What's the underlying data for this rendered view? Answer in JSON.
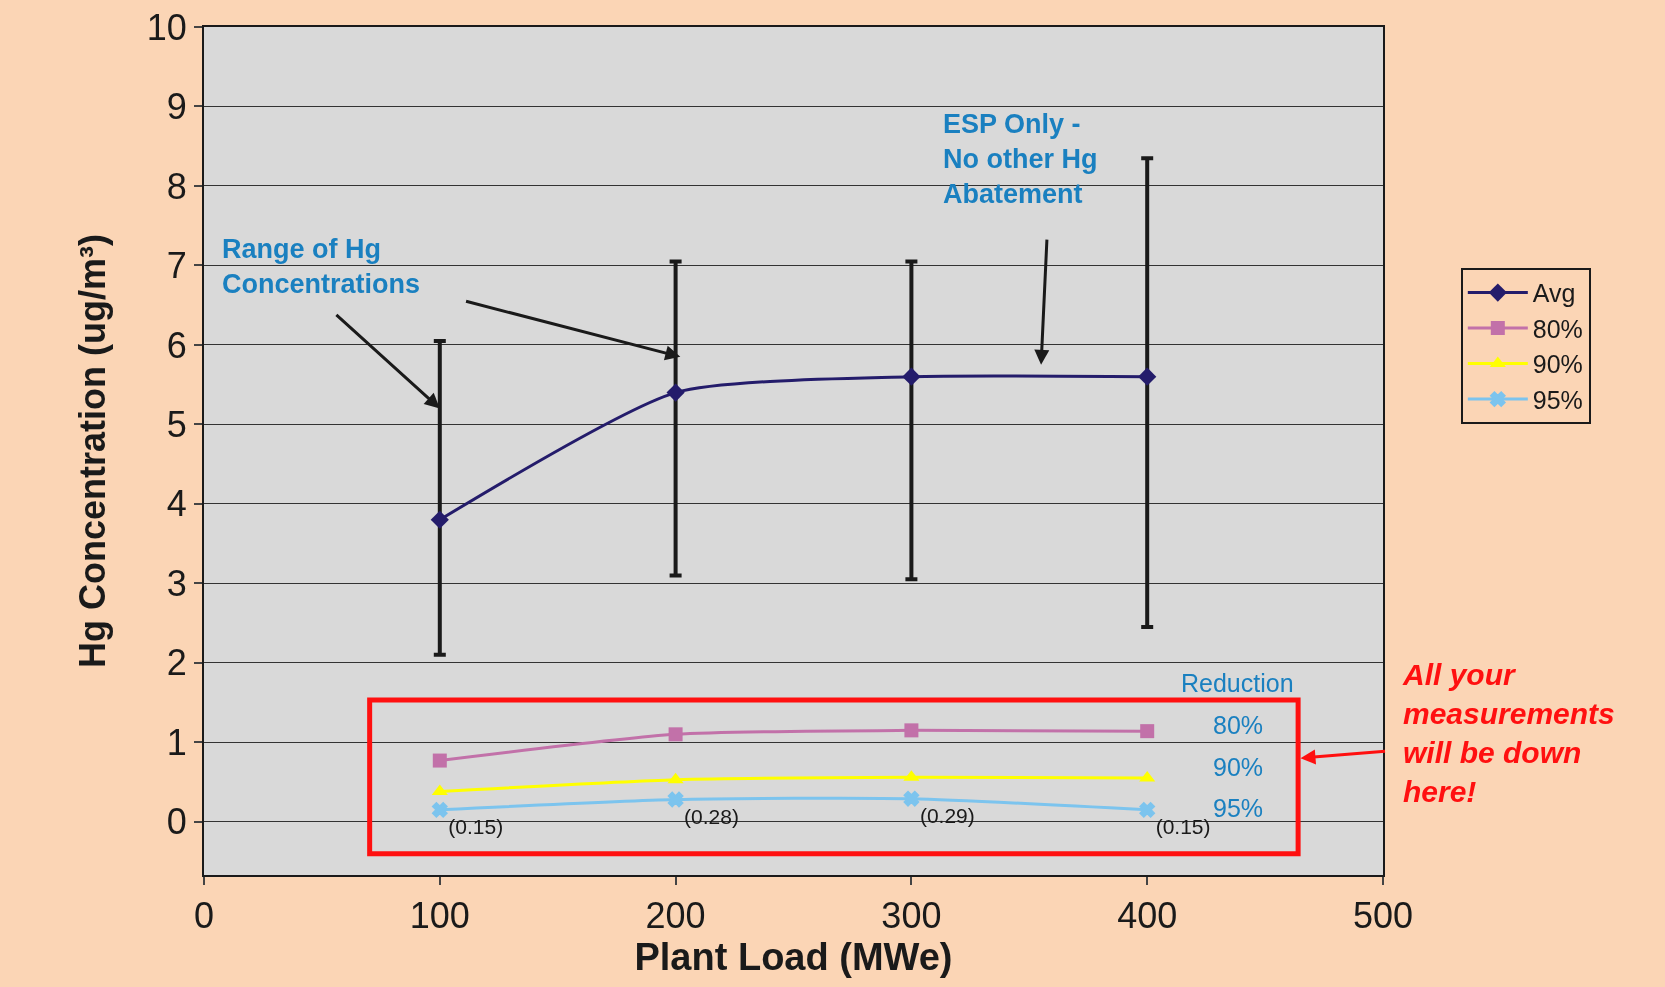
{
  "chart_data": {
    "type": "line",
    "xlabel": "Plant Load (MWe)",
    "ylabel": "Hg Concentration (ug/m³)",
    "x": [
      100,
      200,
      300,
      400
    ],
    "series": [
      {
        "name": "Avg",
        "color": "#241c6b",
        "marker": "diamond",
        "values": [
          3.8,
          5.4,
          5.6,
          5.6
        ],
        "errors": [
          [
            2.1,
            6.05
          ],
          [
            3.1,
            7.05
          ],
          [
            3.05,
            7.05
          ],
          [
            2.45,
            8.35
          ]
        ]
      },
      {
        "name": "80%",
        "color": "#c271a9",
        "marker": "square",
        "values": [
          0.77,
          1.1,
          1.15,
          1.14
        ]
      },
      {
        "name": "90%",
        "color": "#ffff00",
        "marker": "triangle",
        "values": [
          0.38,
          0.53,
          0.56,
          0.55
        ]
      },
      {
        "name": "95%",
        "color": "#7cc4ee",
        "marker": "cross",
        "values": [
          0.15,
          0.28,
          0.29,
          0.15
        ],
        "value_labels": [
          "(0.15)",
          "(0.28)",
          "(0.29)",
          "(0.15)"
        ]
      }
    ],
    "xlim": [
      0,
      500
    ],
    "xticks": [
      0,
      100,
      200,
      300,
      400,
      500
    ],
    "ylim": [
      -0.67,
      10
    ],
    "yticks": [
      0,
      1,
      2,
      3,
      4,
      5,
      6,
      7,
      8,
      9,
      10
    ],
    "grid": "y",
    "legend": "right",
    "line_style": "solid",
    "annotations": [
      {
        "text": "Range of Hg Concentrations",
        "x": 100,
        "y": 5.2
      },
      "ESP Only - No other Hg Abatement",
      "Reduction",
      "80%",
      "90%",
      "95%",
      "All your measurements will be down here!"
    ]
  }
}
